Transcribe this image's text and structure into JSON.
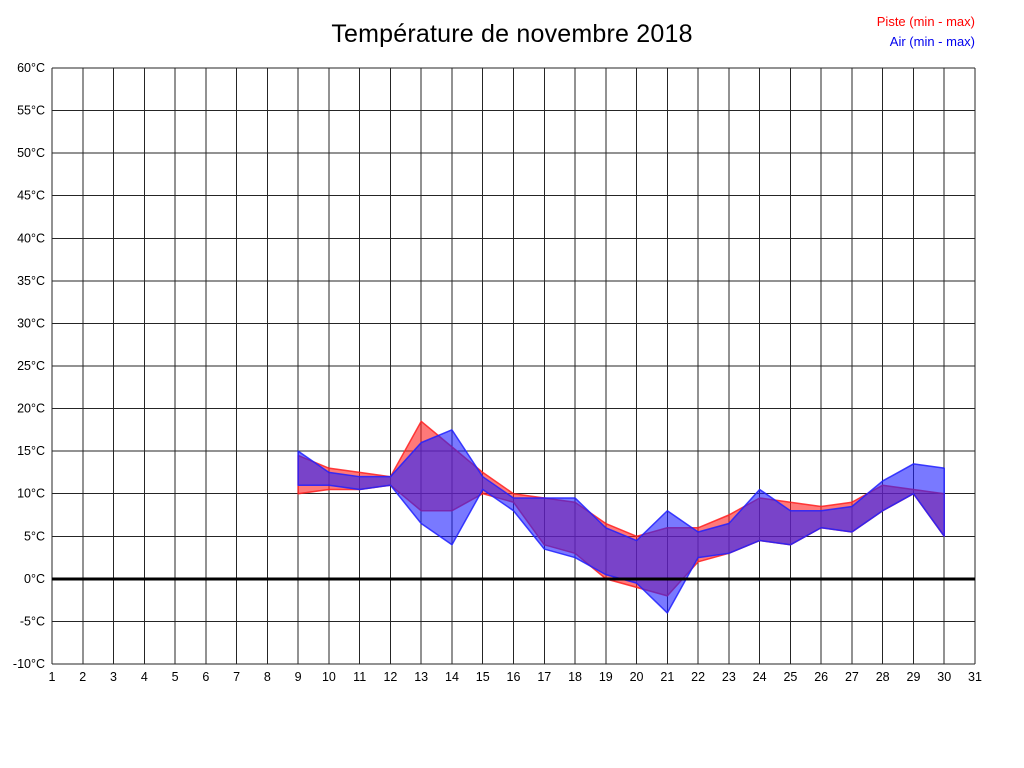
{
  "title": "Température de novembre 2018",
  "legend": {
    "piste_label": "Piste (min - max)",
    "air_label": "Air (min - max)"
  },
  "colors": {
    "piste": "#ff0000",
    "air": "#0000ee",
    "grid": "#000000",
    "zero_line": "#000000",
    "background": "#ffffff"
  },
  "chart_data": {
    "type": "area",
    "title": "Température de novembre 2018",
    "xlabel": "",
    "ylabel": "",
    "x_range": [
      1,
      31
    ],
    "ylim": [
      -10,
      60
    ],
    "y_tick_step": 5,
    "y_tick_suffix": "°C",
    "x_ticks": [
      1,
      2,
      3,
      4,
      5,
      6,
      7,
      8,
      9,
      10,
      11,
      12,
      13,
      14,
      15,
      16,
      17,
      18,
      19,
      20,
      21,
      22,
      23,
      24,
      25,
      26,
      27,
      28,
      29,
      30,
      31
    ],
    "y_ticks": [
      60,
      55,
      50,
      45,
      40,
      35,
      30,
      25,
      20,
      15,
      10,
      5,
      0,
      -5,
      -10
    ],
    "grid": true,
    "legend_position": "top-right",
    "zero_line_value": 0,
    "days": [
      9,
      10,
      11,
      12,
      13,
      14,
      15,
      16,
      17,
      18,
      19,
      20,
      21,
      22,
      23,
      24,
      25,
      26,
      27,
      28,
      29,
      30
    ],
    "series": [
      {
        "name": "Piste (min - max)",
        "color": "#ff2020",
        "min": [
          10,
          10.5,
          10.5,
          11,
          8,
          8,
          10,
          9,
          4,
          3,
          0,
          -1,
          -2,
          2,
          3,
          4.5,
          4,
          6,
          5.5,
          8,
          10,
          5
        ],
        "max": [
          14.5,
          13,
          12.5,
          12,
          18.5,
          15.5,
          12.5,
          10,
          9.5,
          9,
          6.5,
          5,
          6,
          6,
          7.5,
          9.5,
          9,
          8.5,
          9,
          11,
          10.5,
          10
        ]
      },
      {
        "name": "Air (min - max)",
        "color": "#2020ff",
        "min": [
          11,
          11,
          10.5,
          11,
          6.5,
          4,
          10.5,
          8,
          3.5,
          2.5,
          0.5,
          -0.5,
          -4,
          2.5,
          3,
          4.5,
          4,
          6,
          5.5,
          8,
          10,
          5
        ],
        "max": [
          15,
          12.5,
          12,
          12,
          16,
          17.5,
          12,
          9.5,
          9.5,
          9.5,
          6,
          4.5,
          8,
          5.5,
          6.5,
          10.5,
          8,
          8,
          8.5,
          11.5,
          13.5,
          13
        ]
      }
    ]
  }
}
